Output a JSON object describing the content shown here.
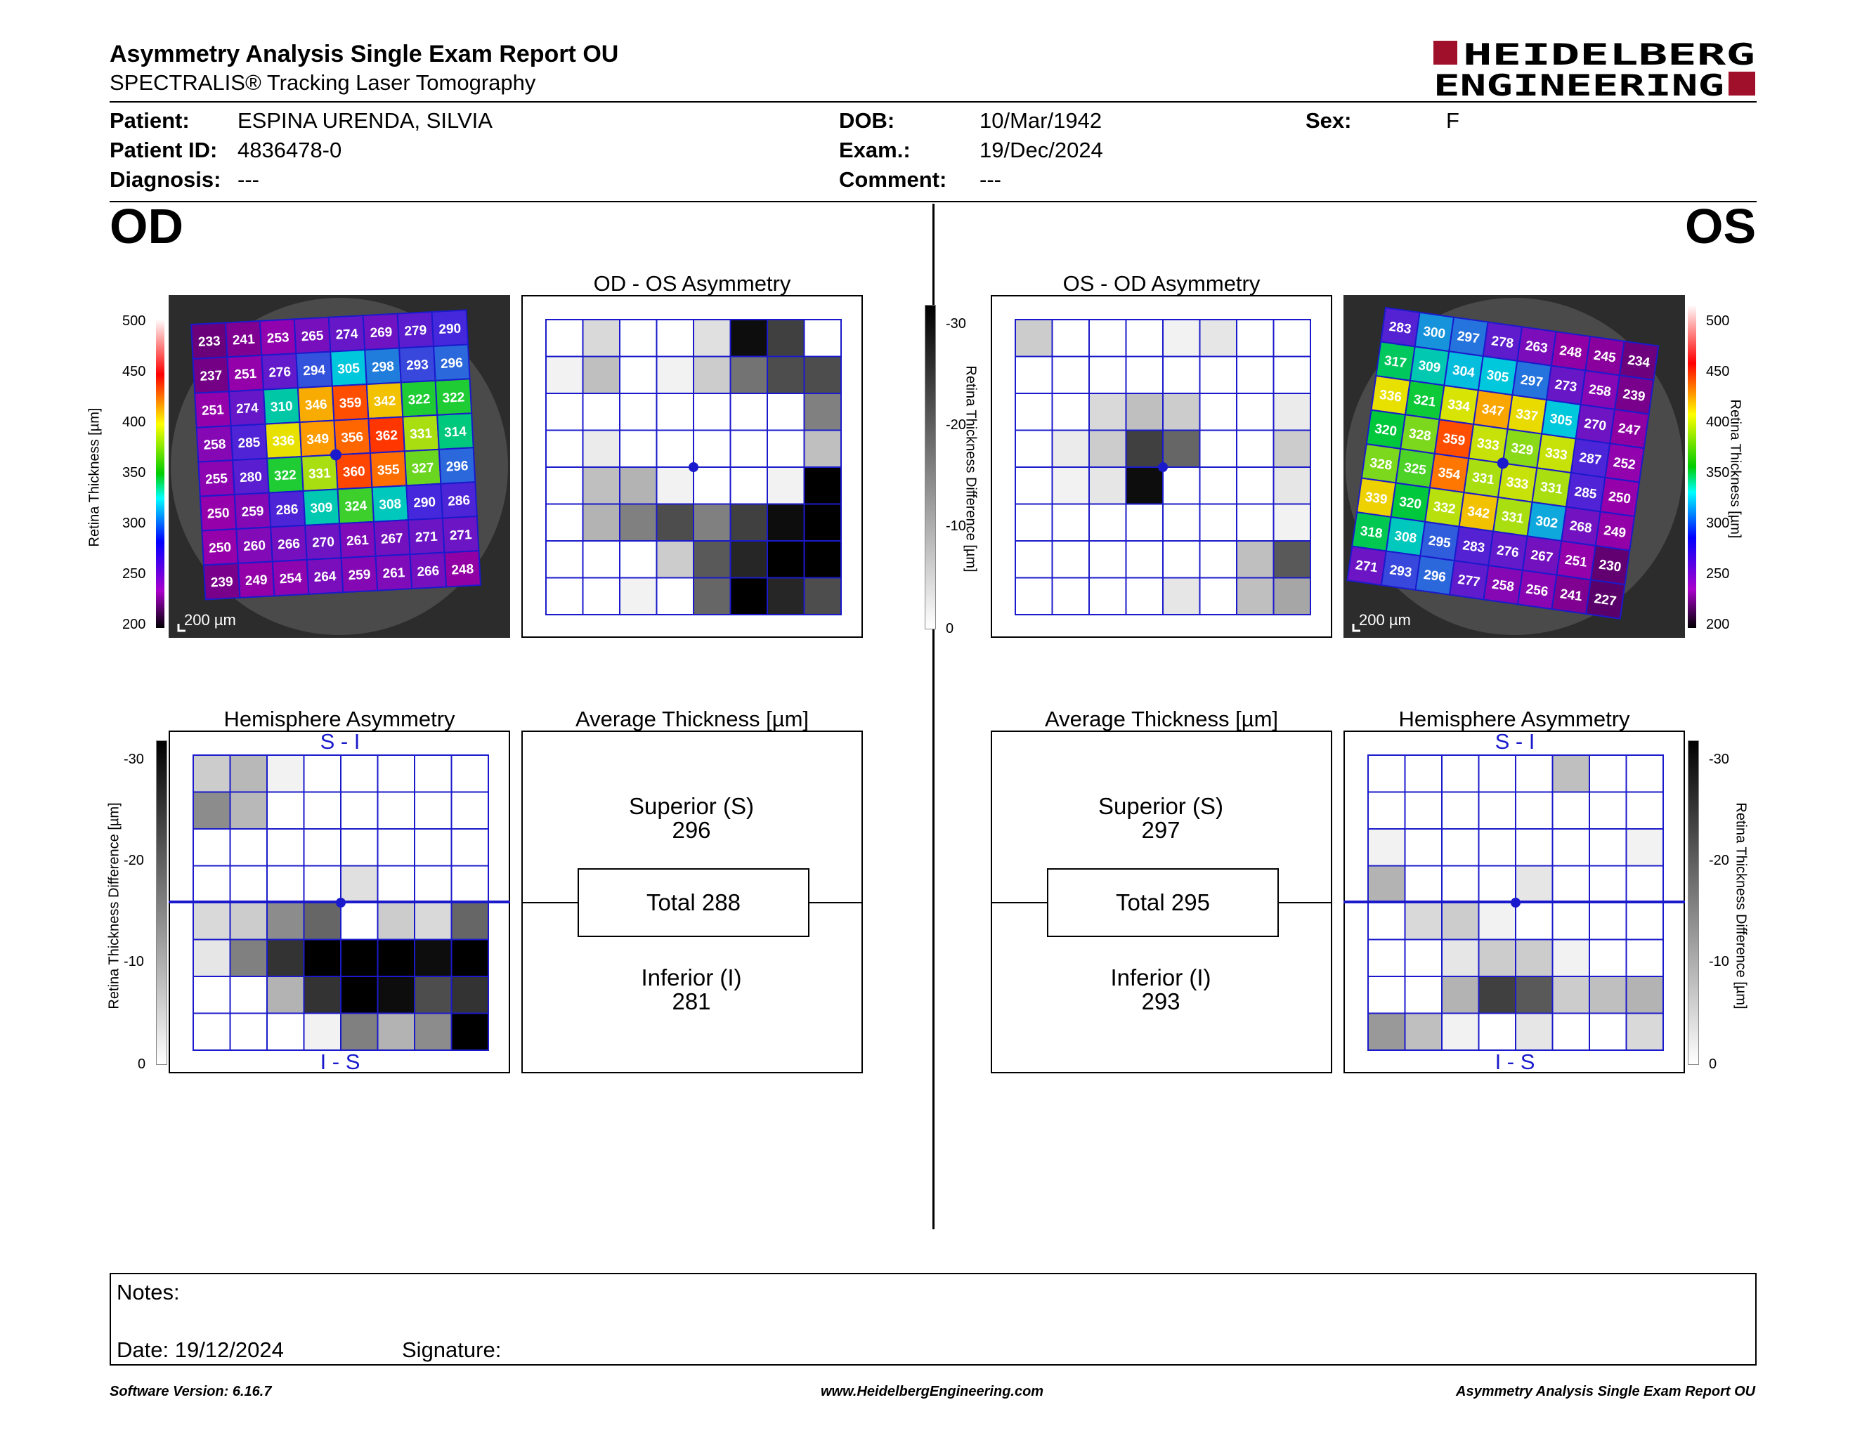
{
  "header": {
    "title": "Asymmetry Analysis Single Exam Report OU",
    "subtitle": "SPECTRALIS® Tracking Laser Tomography",
    "logo_line1": "HEIDELBERG",
    "logo_line2": "ENGINEERING",
    "logo_color": "#a0102a"
  },
  "patient": {
    "patient_label": "Patient:",
    "patient_value": "ESPINA URENDA, SILVIA",
    "id_label": "Patient ID:",
    "id_value": "4836478-0",
    "diagnosis_label": "Diagnosis:",
    "diagnosis_value": "---",
    "dob_label": "DOB:",
    "dob_value": "10/Mar/1942",
    "exam_label": "Exam.:",
    "exam_value": "19/Dec/2024",
    "comment_label": "Comment:",
    "comment_value": "---",
    "sex_label": "Sex:",
    "sex_value": "F"
  },
  "od": {
    "eye_label": "OD",
    "asym_title": "OD - OS Asymmetry",
    "hemi_title": "Hemisphere Asymmetry",
    "avg_title": "Average Thickness [µm]",
    "superior_label": "Superior (S)",
    "superior_value": "296",
    "total_label": "Total 288",
    "inferior_label": "Inferior (I)",
    "inferior_value": "281",
    "scale_bar": "200 µm",
    "hemi_top": "S - I",
    "hemi_bottom": "I - S",
    "thickness_grid": [
      [
        233,
        241,
        253,
        265,
        274,
        269,
        279,
        290
      ],
      [
        237,
        251,
        276,
        294,
        305,
        298,
        293,
        296
      ],
      [
        251,
        274,
        310,
        346,
        359,
        342,
        322,
        322
      ],
      [
        258,
        285,
        336,
        349,
        356,
        362,
        331,
        314
      ],
      [
        255,
        280,
        322,
        331,
        360,
        355,
        327,
        296
      ],
      [
        250,
        259,
        286,
        309,
        324,
        308,
        290,
        286
      ],
      [
        250,
        260,
        266,
        270,
        261,
        267,
        271,
        271
      ],
      [
        239,
        249,
        254,
        264,
        259,
        261,
        266,
        248
      ]
    ],
    "asym_gray": [
      [
        0,
        0.15,
        0,
        0,
        0.12,
        0.95,
        0.75,
        0
      ],
      [
        0.05,
        0.25,
        0,
        0.05,
        0.2,
        0.55,
        0.7,
        0.7
      ],
      [
        0,
        0,
        0,
        0,
        0,
        0,
        0,
        0.5
      ],
      [
        0,
        0.08,
        0,
        0,
        0,
        0,
        0,
        0.25
      ],
      [
        0,
        0.25,
        0.3,
        0.05,
        0,
        0,
        0.05,
        1
      ],
      [
        0,
        0.3,
        0.5,
        0.7,
        0.5,
        0.75,
        0.95,
        1
      ],
      [
        0,
        0,
        0,
        0.2,
        0.65,
        0.85,
        1,
        1
      ],
      [
        0,
        0,
        0.05,
        0,
        0.6,
        1,
        0.85,
        0.7
      ]
    ],
    "hemi_gray": [
      [
        0.2,
        0.28,
        0.05,
        0,
        0,
        0,
        0,
        0
      ],
      [
        0.45,
        0.28,
        0,
        0,
        0,
        0,
        0,
        0
      ],
      [
        0,
        0,
        0,
        0,
        0,
        0,
        0,
        0
      ],
      [
        0,
        0,
        0,
        0,
        0.12,
        0,
        0,
        0
      ],
      [
        0.15,
        0.2,
        0.45,
        0.6,
        0,
        0.2,
        0.15,
        0.6
      ],
      [
        0.1,
        0.5,
        0.8,
        1,
        1,
        1,
        0.95,
        1
      ],
      [
        0,
        0,
        0.3,
        0.8,
        1,
        0.95,
        0.7,
        0.8
      ],
      [
        0,
        0,
        0,
        0.05,
        0.5,
        0.3,
        0.45,
        1
      ]
    ]
  },
  "os": {
    "eye_label": "OS",
    "asym_title": "OS - OD Asymmetry",
    "hemi_title": "Hemisphere Asymmetry",
    "avg_title": "Average Thickness [µm]",
    "superior_label": "Superior (S)",
    "superior_value": "297",
    "total_label": "Total 295",
    "inferior_label": "Inferior (I)",
    "inferior_value": "293",
    "scale_bar": "200 µm",
    "hemi_top": "S - I",
    "hemi_bottom": "I - S",
    "thickness_grid": [
      [
        283,
        300,
        297,
        278,
        263,
        248,
        245,
        234
      ],
      [
        317,
        309,
        304,
        305,
        297,
        273,
        258,
        239
      ],
      [
        336,
        321,
        334,
        347,
        337,
        305,
        270,
        247
      ],
      [
        320,
        328,
        359,
        333,
        329,
        333,
        287,
        252
      ],
      [
        328,
        325,
        354,
        331,
        333,
        331,
        285,
        250
      ],
      [
        339,
        320,
        332,
        342,
        331,
        302,
        268,
        249
      ],
      [
        318,
        308,
        295,
        283,
        276,
        267,
        251,
        230
      ],
      [
        271,
        293,
        296,
        277,
        258,
        256,
        241,
        227
      ]
    ],
    "asym_gray": [
      [
        0.2,
        0,
        0,
        0,
        0.05,
        0.1,
        0,
        0
      ],
      [
        0,
        0,
        0,
        0,
        0,
        0,
        0,
        0
      ],
      [
        0,
        0,
        0.15,
        0.25,
        0.2,
        0,
        0,
        0.08
      ],
      [
        0,
        0.08,
        0.2,
        0.75,
        0.6,
        0,
        0,
        0.2
      ],
      [
        0,
        0.05,
        0.1,
        0.95,
        0,
        0,
        0,
        0.1
      ],
      [
        0,
        0,
        0,
        0,
        0,
        0,
        0,
        0.05
      ],
      [
        0,
        0,
        0,
        0,
        0,
        0,
        0.25,
        0.65
      ],
      [
        0,
        0,
        0,
        0,
        0.1,
        0,
        0.25,
        0.35
      ]
    ],
    "hemi_gray": [
      [
        0,
        0,
        0,
        0,
        0,
        0.25,
        0,
        0
      ],
      [
        0,
        0,
        0,
        0,
        0,
        0,
        0,
        0
      ],
      [
        0.05,
        0,
        0,
        0,
        0,
        0,
        0,
        0.05
      ],
      [
        0.3,
        0,
        0,
        0,
        0.1,
        0,
        0,
        0
      ],
      [
        0,
        0.15,
        0.2,
        0.05,
        0,
        0,
        0,
        0
      ],
      [
        0,
        0,
        0.1,
        0.2,
        0.2,
        0.05,
        0,
        0
      ],
      [
        0,
        0,
        0.3,
        0.75,
        0.65,
        0.2,
        0.25,
        0.3
      ],
      [
        0.4,
        0.25,
        0.05,
        0,
        0.1,
        0,
        0,
        0.15
      ]
    ]
  },
  "scales": {
    "thickness_ticks": [
      "500",
      "450",
      "400",
      "350",
      "300",
      "250",
      "200"
    ],
    "thickness_label": "Retina Thickness [µm]",
    "diff_ticks": [
      "-30",
      "-20",
      "-10",
      "0"
    ],
    "diff_label": "Retina Thickness Difference [µm]"
  },
  "notes": {
    "notes_label": "Notes:",
    "date_label": "Date: 19/12/2024",
    "signature_label": "Signature:"
  },
  "footer": {
    "software": "Software Version: 6.16.7",
    "website": "www.HeidelbergEngineering.com",
    "report_name": "Asymmetry Analysis Single Exam Report OU"
  }
}
